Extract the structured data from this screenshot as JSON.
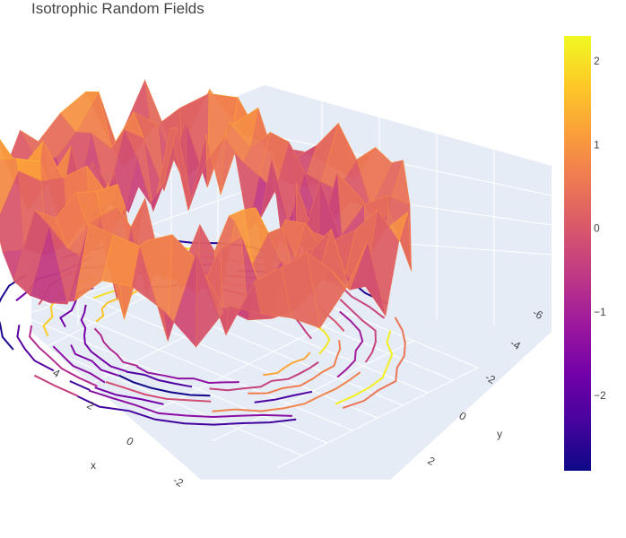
{
  "chart_data": {
    "type": "surface",
    "title": "Isotrophic Random Fields",
    "scene": {
      "background": "#e5ecf6",
      "grid_color": "#ffffff",
      "xaxis": {
        "title": "x",
        "ticks": [
          "-2",
          "0",
          "2",
          "4"
        ]
      },
      "yaxis": {
        "title": "y",
        "ticks": [
          "-6",
          "-4",
          "-2",
          "0",
          "2"
        ]
      },
      "zaxis": {
        "title": "",
        "ticks": []
      }
    },
    "surface": {
      "shape": "annulus",
      "inner_radius": 2.3,
      "outer_radius": 5.1,
      "z_range": [
        -2.9,
        2.3
      ],
      "contours_projected_on_floor": true
    },
    "colorbar": {
      "colorscale": "plasma",
      "colors": [
        "#0d0887",
        "#46039f",
        "#7201a8",
        "#9c179e",
        "#bd3786",
        "#d8576b",
        "#ed7953",
        "#fb9f3a",
        "#fdca26",
        "#f0f921"
      ],
      "range": [
        -2.9,
        2.3
      ],
      "ticks": [
        "2",
        "1",
        "0",
        "−1",
        "−2"
      ],
      "tick_values": [
        2,
        1,
        0,
        -1,
        -2
      ]
    }
  }
}
